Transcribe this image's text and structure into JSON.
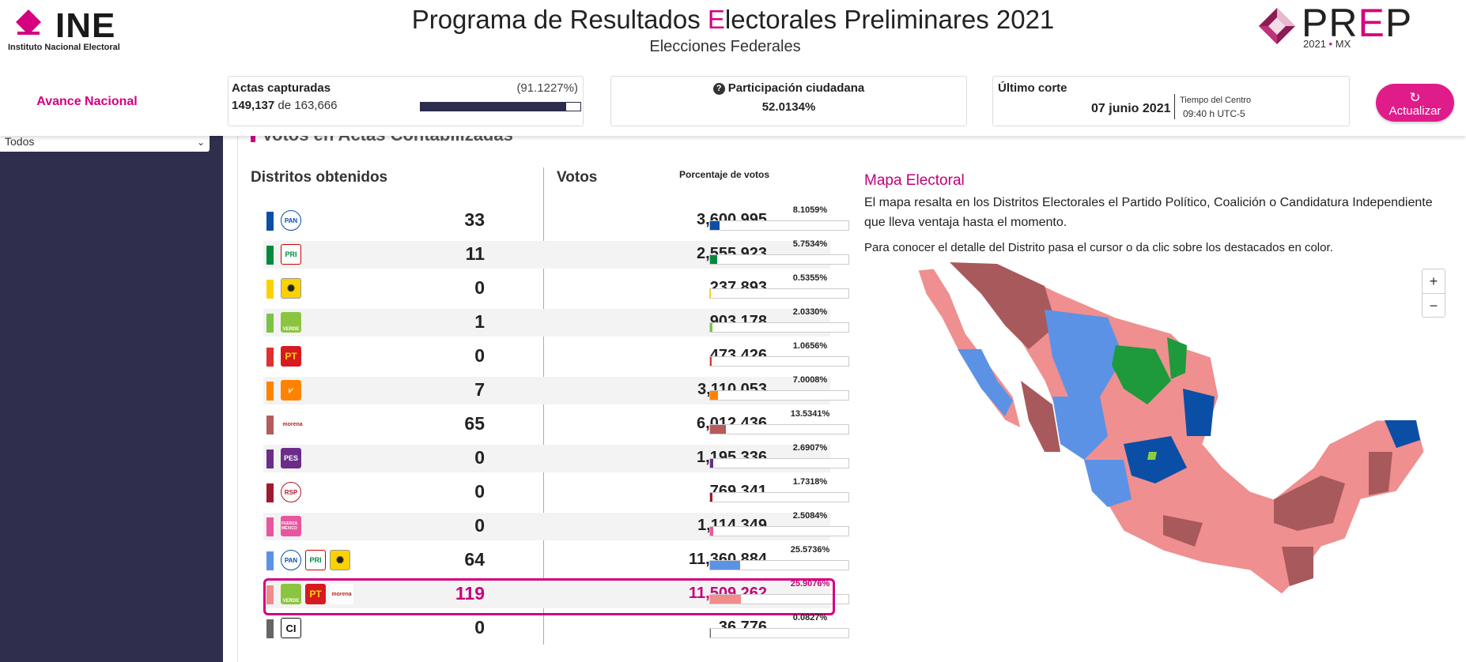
{
  "header": {
    "ine_word": "INE",
    "ine_sub": "Instituto Nacional Electoral",
    "title_pre": "Programa de Resultados ",
    "title_accent": "E",
    "title_post": "lectorales Preliminares 2021",
    "subtitle": "Elecciones Federales",
    "prep_pre": "PR",
    "prep_accent": "E",
    "prep_post": "P",
    "prep_year": "2021",
    "prep_dot": "•",
    "prep_country": "MX"
  },
  "status": {
    "avance_label": "Avance Nacional",
    "actas_title": "Actas capturadas",
    "actas_pct_text": "(91.1227%)",
    "actas_captured": "149,137",
    "actas_of": " de 163,666",
    "actas_progress": 0.911227,
    "participacion_title": "Participación ciudadana",
    "participacion_value": "52.0134%",
    "corte_title": "Último corte",
    "corte_date": "07 junio 2021",
    "corte_tz": "Tiempo del Centro",
    "corte_time": "09:40 h UTC-5",
    "refresh_label": "Actualizar"
  },
  "sidebar": {
    "select_value": "Todos"
  },
  "section": {
    "title": "Votos en Actas Contabilizadas",
    "districts_header": "Distritos obtenidos",
    "votes_header": "Votos",
    "pct_header": "Porcentaje de votos"
  },
  "rows": [
    {
      "color": "#0a4fa5",
      "logos": [
        {
          "cls": "pan",
          "text": "PAN"
        }
      ],
      "districts": "33",
      "votes": "3,600,995",
      "pct": "8.1059%",
      "fraction": 0.081059
    },
    {
      "color": "#008a3e",
      "logos": [
        {
          "cls": "pri",
          "text": "PRI"
        }
      ],
      "districts": "11",
      "votes": "2,555,923",
      "pct": "5.7534%",
      "fraction": 0.057534
    },
    {
      "color": "#f9d200",
      "logos": [
        {
          "cls": "prd",
          "text": "✺"
        }
      ],
      "districts": "0",
      "votes": "237,893",
      "pct": "0.5355%",
      "fraction": 0.005355
    },
    {
      "color": "#7dc242",
      "logos": [
        {
          "cls": "verde",
          "text": "VERDE"
        }
      ],
      "districts": "1",
      "votes": "903,178",
      "pct": "2.0330%",
      "fraction": 0.02033
    },
    {
      "color": "#e03030",
      "logos": [
        {
          "cls": "pt",
          "text": "PT"
        }
      ],
      "districts": "0",
      "votes": "473,426",
      "pct": "1.0656%",
      "fraction": 0.010656
    },
    {
      "color": "#ff8300",
      "logos": [
        {
          "cls": "mc",
          "text": "⩗"
        }
      ],
      "districts": "7",
      "votes": "3,110,053",
      "pct": "7.0008%",
      "fraction": 0.070008
    },
    {
      "color": "#b75a5a",
      "logos": [
        {
          "cls": "morena",
          "text": "morena"
        }
      ],
      "districts": "65",
      "votes": "6,012,436",
      "pct": "13.5341%",
      "fraction": 0.135341
    },
    {
      "color": "#6b2c8a",
      "logos": [
        {
          "cls": "pes",
          "text": "PES"
        }
      ],
      "districts": "0",
      "votes": "1,195,336",
      "pct": "2.6907%",
      "fraction": 0.026907
    },
    {
      "color": "#9e1b2f",
      "logos": [
        {
          "cls": "rsp",
          "text": "RSP"
        }
      ],
      "districts": "0",
      "votes": "769,341",
      "pct": "1.7318%",
      "fraction": 0.017318
    },
    {
      "color": "#e8569f",
      "logos": [
        {
          "cls": "fxm",
          "text": "FUERZA MÉXICO"
        }
      ],
      "districts": "0",
      "votes": "1,114,349",
      "pct": "2.5084%",
      "fraction": 0.025084
    },
    {
      "color": "#5b92e5",
      "logos": [
        {
          "cls": "pan",
          "text": "PAN"
        },
        {
          "cls": "pri",
          "text": "PRI"
        },
        {
          "cls": "prd",
          "text": "✺"
        }
      ],
      "districts": "64",
      "votes": "11,360,884",
      "pct": "25.5736%",
      "fraction": 0.255736
    },
    {
      "color": "#f08c8c",
      "logos": [
        {
          "cls": "verde",
          "text": "VERDE"
        },
        {
          "cls": "pt",
          "text": "PT"
        },
        {
          "cls": "morena",
          "text": "morena"
        }
      ],
      "districts": "119",
      "votes": "11,509,262",
      "pct": "25.9076%",
      "fraction": 0.259076,
      "highlight": true
    },
    {
      "color": "#666666",
      "logos": [
        {
          "cls": "ci",
          "text": "CI"
        }
      ],
      "districts": "0",
      "votes": "36,776",
      "pct": "0.0827%",
      "fraction": 0.000827
    }
  ],
  "map": {
    "title": "Mapa Electoral",
    "description": "El mapa resalta en los Distritos Electorales el Partido Político, Coalición o Candidatura Independiente que lleva ventaja hasta el momento.",
    "hint": "Para conocer el detalle del Distrito pasa el cursor o da clic sobre los destacados en color.",
    "zoom_in": "+",
    "zoom_out": "−"
  }
}
